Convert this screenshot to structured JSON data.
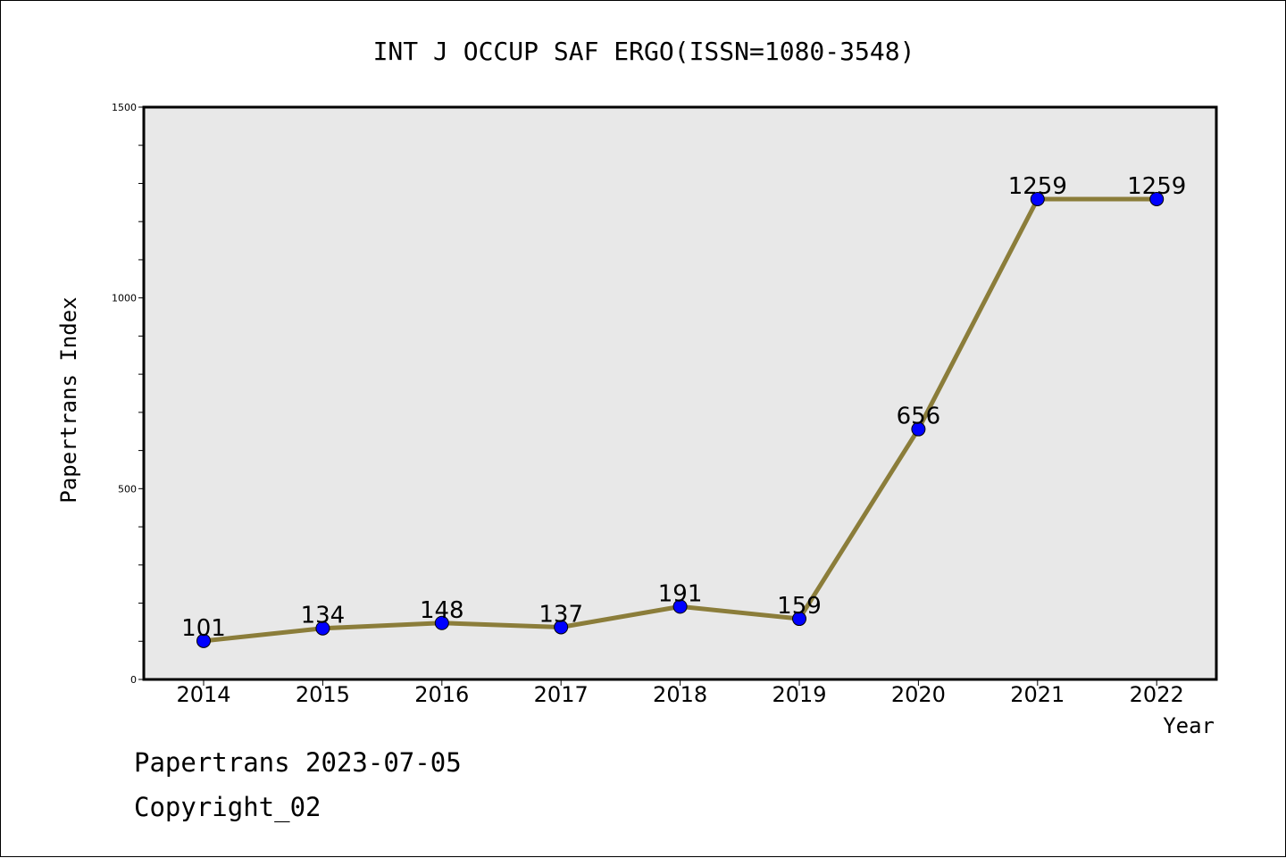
{
  "chart_data": {
    "type": "line",
    "title": "INT J OCCUP SAF ERGO(ISSN=1080-3548)",
    "xlabel": "Year",
    "ylabel": "Papertrans Index",
    "categories": [
      "2014",
      "2015",
      "2016",
      "2017",
      "2018",
      "2019",
      "2020",
      "2021",
      "2022"
    ],
    "series": [
      {
        "values": [
          101,
          134,
          148,
          137,
          191,
          159,
          656,
          1259,
          1259
        ]
      }
    ],
    "data_labels": [
      "101",
      "134",
      "148",
      "137",
      "191",
      "159",
      "656",
      "1259",
      "1259"
    ],
    "ylim": [
      0,
      1500
    ],
    "y_ticks": [
      "0",
      "500",
      "1000",
      "1500"
    ],
    "grid": false,
    "plot_background": "#e8e8e8",
    "line_color": "#8b7d3a",
    "marker_color": "#0000ff"
  },
  "footer": {
    "date_line": "Papertrans 2023-07-05",
    "copyright": "Copyright_02"
  }
}
